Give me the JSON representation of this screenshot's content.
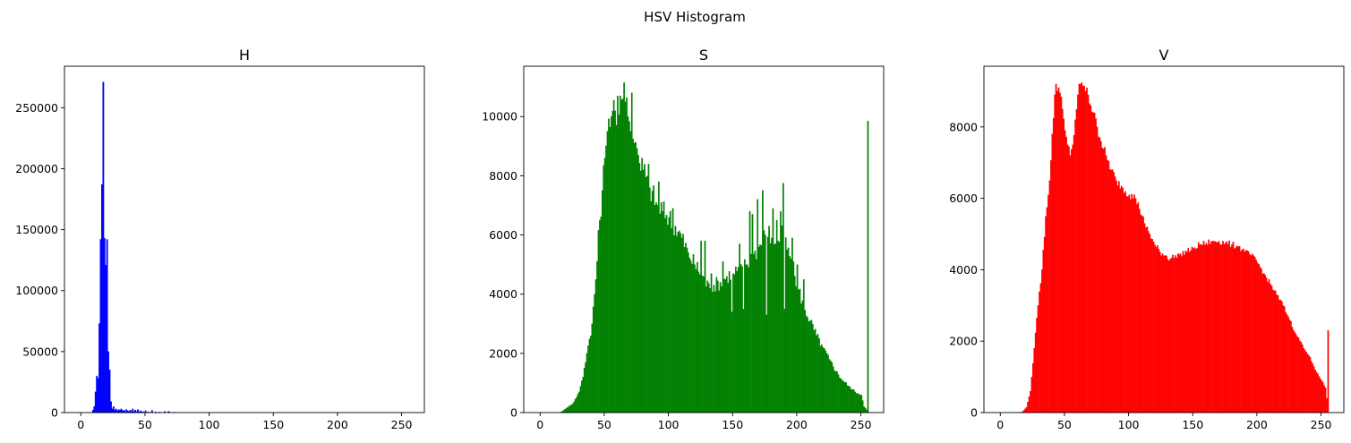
{
  "figure_title": "HSV Histogram",
  "chart_data": [
    {
      "type": "bar",
      "title": "H",
      "color": "#0000ff",
      "xlim": [
        -12.75,
        267.75
      ],
      "ylim": [
        0,
        284000
      ],
      "xticks": [
        0,
        50,
        100,
        150,
        200,
        250
      ],
      "yticks": [
        0,
        50000,
        100000,
        150000,
        200000,
        250000
      ],
      "grid": false,
      "bins": [
        0,
        256
      ],
      "points": [
        [
          9,
          2000
        ],
        [
          10,
          5000
        ],
        [
          11,
          17000
        ],
        [
          12,
          30000
        ],
        [
          13,
          28000
        ],
        [
          14,
          73000
        ],
        [
          15,
          142000
        ],
        [
          16,
          187000
        ],
        [
          17,
          271000
        ],
        [
          18,
          143000
        ],
        [
          19,
          121000
        ],
        [
          20,
          142000
        ],
        [
          21,
          50000
        ],
        [
          22,
          35000
        ],
        [
          23,
          9000
        ],
        [
          24,
          3000
        ],
        [
          25,
          5000
        ],
        [
          26,
          2000
        ],
        [
          27,
          3000
        ],
        [
          28,
          1500
        ],
        [
          29,
          2500
        ],
        [
          30,
          2000
        ],
        [
          31,
          3000
        ],
        [
          32,
          1500
        ],
        [
          33,
          2000
        ],
        [
          34,
          1000
        ],
        [
          35,
          2500
        ],
        [
          36,
          1500
        ],
        [
          37,
          1000
        ],
        [
          38,
          2000
        ],
        [
          39,
          1000
        ],
        [
          40,
          3000
        ],
        [
          41,
          800
        ],
        [
          42,
          2000
        ],
        [
          43,
          700
        ],
        [
          44,
          2500
        ],
        [
          45,
          600
        ],
        [
          46,
          1500
        ],
        [
          47,
          500
        ],
        [
          48,
          800
        ],
        [
          50,
          1500
        ],
        [
          52,
          600
        ],
        [
          55,
          1800
        ],
        [
          58,
          500
        ],
        [
          61,
          400
        ],
        [
          65,
          900
        ],
        [
          68,
          1000
        ],
        [
          72,
          300
        ],
        [
          80,
          200
        ],
        [
          90,
          150
        ],
        [
          100,
          100
        ],
        [
          120,
          80
        ],
        [
          150,
          50
        ],
        [
          200,
          30
        ],
        [
          250,
          20
        ]
      ]
    },
    {
      "type": "bar",
      "title": "S",
      "color": "#008000",
      "xlim": [
        -12.75,
        267.75
      ],
      "ylim": [
        0,
        11700
      ],
      "xticks": [
        0,
        50,
        100,
        150,
        200,
        250
      ],
      "yticks": [
        0,
        2000,
        4000,
        6000,
        8000,
        10000
      ],
      "grid": false,
      "bins": [
        0,
        256
      ],
      "points": [
        [
          0,
          0
        ],
        [
          15,
          0
        ],
        [
          17,
          50
        ],
        [
          20,
          150
        ],
        [
          25,
          300
        ],
        [
          30,
          700
        ],
        [
          33,
          1200
        ],
        [
          36,
          2000
        ],
        [
          40,
          3000
        ],
        [
          43,
          4500
        ],
        [
          46,
          6500
        ],
        [
          48,
          7500
        ],
        [
          50,
          8600
        ],
        [
          52,
          9500
        ],
        [
          55,
          10000
        ],
        [
          58,
          10200
        ],
        [
          60,
          10300
        ],
        [
          62,
          10700
        ],
        [
          64,
          10600
        ],
        [
          66,
          10500
        ],
        [
          68,
          10000
        ],
        [
          70,
          9500
        ],
        [
          73,
          9100
        ],
        [
          76,
          8700
        ],
        [
          80,
          8200
        ],
        [
          85,
          7600
        ],
        [
          90,
          7100
        ],
        [
          95,
          6800
        ],
        [
          100,
          6600
        ],
        [
          105,
          6300
        ],
        [
          110,
          5900
        ],
        [
          115,
          5400
        ],
        [
          120,
          5000
        ],
        [
          125,
          4700
        ],
        [
          128,
          4400
        ],
        [
          132,
          4200
        ],
        [
          135,
          4300
        ],
        [
          140,
          4400
        ],
        [
          145,
          4600
        ],
        [
          150,
          4700
        ],
        [
          155,
          4800
        ],
        [
          160,
          5000
        ],
        [
          165,
          5300
        ],
        [
          170,
          5600
        ],
        [
          175,
          6000
        ],
        [
          180,
          5900
        ],
        [
          185,
          5800
        ],
        [
          190,
          6100
        ],
        [
          195,
          5200
        ],
        [
          200,
          4300
        ],
        [
          205,
          3600
        ],
        [
          210,
          3100
        ],
        [
          215,
          2600
        ],
        [
          220,
          2200
        ],
        [
          225,
          1800
        ],
        [
          230,
          1400
        ],
        [
          235,
          1100
        ],
        [
          240,
          900
        ],
        [
          245,
          700
        ],
        [
          250,
          600
        ],
        [
          252,
          200
        ],
        [
          254,
          100
        ],
        [
          255,
          9850
        ]
      ],
      "spikes": [
        [
          60,
          10700
        ],
        [
          65,
          11150
        ],
        [
          71,
          10800
        ],
        [
          84,
          8400
        ],
        [
          92,
          7800
        ],
        [
          103,
          6900
        ],
        [
          107,
          6100
        ],
        [
          125,
          5800
        ],
        [
          128,
          5800
        ],
        [
          133,
          4700
        ],
        [
          142,
          5100
        ],
        [
          155,
          5700
        ],
        [
          163,
          6800
        ],
        [
          165,
          6700
        ],
        [
          169,
          7200
        ],
        [
          173,
          7500
        ],
        [
          176,
          7200
        ],
        [
          178,
          6300
        ],
        [
          181,
          6900
        ],
        [
          184,
          6500
        ],
        [
          187,
          6800
        ],
        [
          189,
          7750
        ],
        [
          192,
          5500
        ],
        [
          196,
          5900
        ],
        [
          149,
          3400
        ],
        [
          158,
          3500
        ],
        [
          176,
          3300
        ],
        [
          190,
          3500
        ],
        [
          200,
          5000
        ],
        [
          205,
          4500
        ]
      ]
    },
    {
      "type": "bar",
      "title": "V",
      "color": "#ff0000",
      "xlim": [
        -12.75,
        267.75
      ],
      "ylim": [
        0,
        9700
      ],
      "xticks": [
        0,
        50,
        100,
        150,
        200,
        250
      ],
      "yticks": [
        0,
        2000,
        4000,
        6000,
        8000
      ],
      "grid": false,
      "bins": [
        0,
        256
      ],
      "points": [
        [
          0,
          0
        ],
        [
          15,
          0
        ],
        [
          17,
          30
        ],
        [
          20,
          150
        ],
        [
          23,
          600
        ],
        [
          26,
          1800
        ],
        [
          29,
          3000
        ],
        [
          32,
          4000
        ],
        [
          35,
          5500
        ],
        [
          38,
          6500
        ],
        [
          40,
          7800
        ],
        [
          42,
          8900
        ],
        [
          43,
          9200
        ],
        [
          45,
          9100
        ],
        [
          48,
          8500
        ],
        [
          50,
          7900
        ],
        [
          52,
          7500
        ],
        [
          54,
          7200
        ],
        [
          56,
          7500
        ],
        [
          58,
          8200
        ],
        [
          60,
          8900
        ],
        [
          62,
          9200
        ],
        [
          64,
          9150
        ],
        [
          66,
          9000
        ],
        [
          68,
          8900
        ],
        [
          70,
          8600
        ],
        [
          72,
          8400
        ],
        [
          75,
          8000
        ],
        [
          78,
          7600
        ],
        [
          82,
          7200
        ],
        [
          86,
          6800
        ],
        [
          90,
          6500
        ],
        [
          95,
          6300
        ],
        [
          100,
          6100
        ],
        [
          105,
          6000
        ],
        [
          108,
          5700
        ],
        [
          112,
          5300
        ],
        [
          116,
          5000
        ],
        [
          120,
          4700
        ],
        [
          124,
          4500
        ],
        [
          128,
          4400
        ],
        [
          132,
          4300
        ],
        [
          136,
          4400
        ],
        [
          140,
          4450
        ],
        [
          145,
          4500
        ],
        [
          150,
          4600
        ],
        [
          155,
          4700
        ],
        [
          160,
          4750
        ],
        [
          165,
          4800
        ],
        [
          170,
          4800
        ],
        [
          175,
          4750
        ],
        [
          180,
          4700
        ],
        [
          185,
          4650
        ],
        [
          190,
          4500
        ],
        [
          195,
          4400
        ],
        [
          200,
          4200
        ],
        [
          205,
          3900
        ],
        [
          210,
          3600
        ],
        [
          215,
          3300
        ],
        [
          220,
          3000
        ],
        [
          225,
          2600
        ],
        [
          230,
          2200
        ],
        [
          235,
          1900
        ],
        [
          240,
          1600
        ],
        [
          245,
          1200
        ],
        [
          250,
          900
        ],
        [
          253,
          700
        ],
        [
          254,
          400
        ],
        [
          255,
          2300
        ]
      ]
    }
  ]
}
